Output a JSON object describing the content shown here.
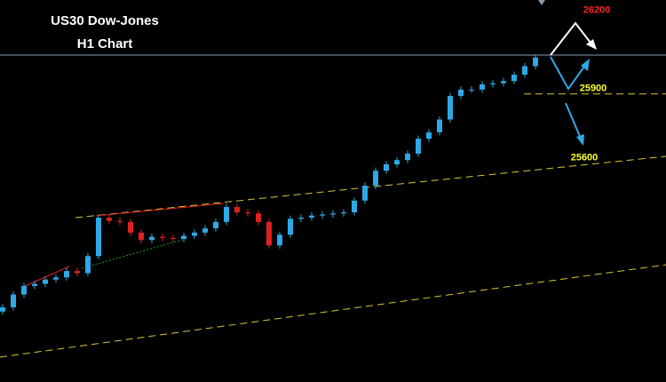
{
  "chart_data": {
    "type": "candlestick",
    "title": "US30 Dow-Jones",
    "subtitle": "H1 Chart",
    "up_color": "#2ea8e6",
    "down_color": "#e02020",
    "ylim": [
      24550,
      26340
    ],
    "open": [
      24880,
      24900,
      24960,
      25000,
      25010,
      25030,
      25040,
      25070,
      25060,
      25140,
      25320,
      25305,
      25300,
      25250,
      25215,
      25230,
      25225,
      25220,
      25235,
      25250,
      25270,
      25300,
      25370,
      25345,
      25340,
      25300,
      25190,
      25240,
      25315,
      25320,
      25330,
      25335,
      25340,
      25345,
      25400,
      25470,
      25540,
      25570,
      25590,
      25620,
      25690,
      25720,
      25780,
      25890,
      25920,
      25920,
      25945,
      25950,
      25960,
      25990,
      26030
    ],
    "high": [
      24915,
      24975,
      25015,
      25025,
      25045,
      25055,
      25085,
      25085,
      25155,
      25335,
      25335,
      25320,
      25315,
      25265,
      25245,
      25245,
      25240,
      25250,
      25265,
      25285,
      25315,
      25385,
      25385,
      25360,
      25355,
      25315,
      25255,
      25330,
      25335,
      25345,
      25350,
      25355,
      25360,
      25415,
      25485,
      25555,
      25585,
      25605,
      25635,
      25705,
      25735,
      25795,
      25905,
      25935,
      25935,
      25960,
      25965,
      25975,
      26005,
      26045,
      26085
    ],
    "low": [
      24865,
      24885,
      24945,
      24985,
      24995,
      25015,
      25025,
      25045,
      25045,
      25125,
      25290,
      25285,
      25235,
      25200,
      25200,
      25210,
      25205,
      25205,
      25220,
      25235,
      25255,
      25285,
      25330,
      25325,
      25285,
      25175,
      25175,
      25225,
      25300,
      25305,
      25315,
      25320,
      25325,
      25330,
      25385,
      25455,
      25525,
      25555,
      25575,
      25605,
      25675,
      25705,
      25765,
      25875,
      25905,
      25905,
      25930,
      25935,
      25945,
      25975,
      26015
    ],
    "close": [
      24900,
      24960,
      25000,
      25010,
      25030,
      25040,
      25070,
      25060,
      25140,
      25320,
      25305,
      25300,
      25250,
      25215,
      25230,
      25225,
      25220,
      25235,
      25250,
      25270,
      25300,
      25370,
      25345,
      25340,
      25300,
      25190,
      25240,
      25315,
      25320,
      25330,
      25335,
      25340,
      25345,
      25400,
      25470,
      25540,
      25570,
      25590,
      25620,
      25690,
      25720,
      25780,
      25890,
      25920,
      25920,
      25945,
      25950,
      25960,
      25990,
      26030,
      26070
    ],
    "levels": [
      {
        "value": 26200,
        "color": "#ff2020"
      },
      {
        "value": 25900,
        "color": "#ffff33"
      },
      {
        "value": 25600,
        "color": "#ffff33"
      }
    ]
  }
}
